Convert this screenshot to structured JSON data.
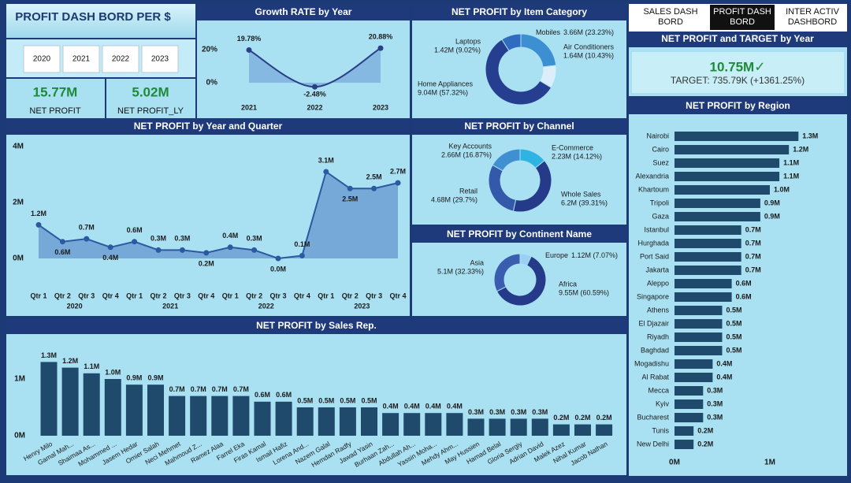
{
  "header": {
    "title": "PROFIT DASH BORD PER $"
  },
  "year_slicer": [
    "2020",
    "2021",
    "2022",
    "2023"
  ],
  "nav": [
    "SALES DASH BORD",
    "PROFIT DASH BORD",
    "INTER ACTIV DASHBORD"
  ],
  "kpis": [
    {
      "value": "15.77M",
      "label": "NET PROFIT"
    },
    {
      "value": "5.02M",
      "label": "NET PROFIT_LY"
    }
  ],
  "target_card": {
    "title": "NET PROFIT and TARGET by Year",
    "value": "10.75M✓",
    "target": "TARGET: 735.79K (+1361.25%)"
  },
  "chart_data": [
    {
      "type": "line",
      "title": "Growth RATE by Year",
      "smooth": true,
      "grid": false,
      "categories": [
        "2021",
        "2022",
        "2023"
      ],
      "values": [
        19.78,
        -2.48,
        20.88
      ],
      "value_labels": [
        "19.78%",
        "-2.48%",
        "20.88%"
      ],
      "ylim": [
        -5,
        25
      ],
      "yticks": [
        {
          "value": 0,
          "label": "0%"
        },
        {
          "value": 20,
          "label": "20%"
        }
      ],
      "color": "#2b3f86",
      "area_color": "#7fb2de"
    },
    {
      "type": "line",
      "title": "NET PROFIT by Year and Quarter",
      "smooth": false,
      "grid": false,
      "categories": [
        "Qtr 1",
        "Qtr 2",
        "Qtr 3",
        "Qtr 4",
        "Qtr 1",
        "Qtr 2",
        "Qtr 3",
        "Qtr 4",
        "Qtr 1",
        "Qtr 2",
        "Qtr 3",
        "Qtr 4",
        "Qtr 1",
        "Qtr 2",
        "Qtr 3",
        "Qtr 4"
      ],
      "groups": [
        "2020",
        "2021",
        "2022",
        "2023"
      ],
      "values": [
        1200000,
        600000,
        700000,
        400000,
        600000,
        300000,
        300000,
        200000,
        400000,
        300000,
        0,
        100000,
        3100000,
        2500000,
        2500000,
        2700000
      ],
      "value_labels": [
        "1.2M",
        "0.6M",
        "0.7M",
        "0.4M",
        "0.6M",
        "0.3M",
        "0.3M",
        "0.2M",
        "0.4M",
        "0.3M",
        "0.0M",
        "0.1M",
        "3.1M",
        "2.5M",
        "2.5M",
        "2.7M"
      ],
      "ylim": [
        -300000,
        4200000
      ],
      "yticks": [
        {
          "value": 0,
          "label": "0M"
        },
        {
          "value": 2000000,
          "label": "2M"
        },
        {
          "value": 4000000,
          "label": "4M"
        }
      ],
      "color": "#2c5aa0",
      "area_color": "#6f9fd2"
    },
    {
      "type": "pie",
      "title": "NET PROFIT by Item Category",
      "categories": [
        "Mobiles",
        "Air Conditioners",
        "Home Appliances",
        "Laptops"
      ],
      "values": [
        3660000,
        1640000,
        9040000,
        1420000
      ],
      "value_labels": [
        "3.66M (23.23%)",
        "1.64M (10.43%)",
        "9.04M (57.32%)",
        "1.42M (9.02%)"
      ],
      "colors": [
        "#3c8fd0",
        "#dbeefa",
        "#263e90",
        "#2f6cbf"
      ]
    },
    {
      "type": "pie",
      "title": "NET PROFIT by Channel",
      "categories": [
        "E-Commerce",
        "Whole Sales",
        "Retail",
        "Key Accounts"
      ],
      "values": [
        2230000,
        6200000,
        4680000,
        2660000
      ],
      "value_labels": [
        "2.23M (14.12%)",
        "6.2M (39.31%)",
        "4.68M (29.7%)",
        "2.66M (16.87%)"
      ],
      "colors": [
        "#2fb3e3",
        "#263a8a",
        "#3458aa",
        "#3f8fd1"
      ]
    },
    {
      "type": "pie",
      "title": "NET PROFIT by Continent Name",
      "categories": [
        "Europe",
        "Africa",
        "Asia"
      ],
      "values": [
        1120000,
        9550000,
        5100000
      ],
      "value_labels": [
        "1.12M (7.07%)",
        "9.55M (60.59%)",
        "5.1M (32.33%)"
      ],
      "colors": [
        "#9bd0f2",
        "#263a8a",
        "#3a5db0"
      ]
    },
    {
      "type": "hbar",
      "title": "NET PROFIT by Region",
      "categories": [
        "Nairobi",
        "Cairo",
        "Suez",
        "Alexandria",
        "Khartoum",
        "Tripoli",
        "Gaza",
        "Istanbul",
        "Hurghada",
        "Port Said",
        "Jakarta",
        "Aleppo",
        "Singapore",
        "Athens",
        "El Djazair",
        "Riyadh",
        "Baghdad",
        "Mogadishu",
        "Al Rabat",
        "Mecca",
        "Kyiv",
        "Bucharest",
        "Tunis",
        "New Delhi"
      ],
      "values": [
        1300000,
        1200000,
        1100000,
        1100000,
        1000000,
        900000,
        900000,
        700000,
        700000,
        700000,
        700000,
        600000,
        600000,
        500000,
        500000,
        500000,
        500000,
        400000,
        400000,
        300000,
        300000,
        300000,
        200000,
        200000
      ],
      "value_labels": [
        "1.3M",
        "1.2M",
        "1.1M",
        "1.1M",
        "1.0M",
        "0.9M",
        "0.9M",
        "0.7M",
        "0.7M",
        "0.7M",
        "0.7M",
        "0.6M",
        "0.6M",
        "0.5M",
        "0.5M",
        "0.5M",
        "0.5M",
        "0.4M",
        "0.4M",
        "0.3M",
        "0.3M",
        "0.3M",
        "0.2M",
        "0.2M"
      ],
      "xlim": [
        0,
        1500000
      ],
      "xticks": [
        {
          "value": 0,
          "label": "0M"
        },
        {
          "value": 1000000,
          "label": "1M"
        }
      ],
      "color": "#1f4a6c"
    },
    {
      "type": "bar",
      "title": "NET PROFIT by Sales Rep.",
      "categories": [
        "Henry Milo",
        "Gamal Mah...",
        "Shaimaa As...",
        "Mohammed ...",
        "Jasem Hedar",
        "Omier Salah",
        "Neci Mehmet",
        "Mahmoud Z...",
        "Ramez Alaa",
        "Farrel Eka",
        "Firas Kamal",
        "Ismail Hafiz",
        "Lorena And...",
        "Nazem Galal",
        "Hemdan Radfy",
        "Jawad Yasin",
        "Burhaan Zah...",
        "Abdullah Ah...",
        "Yassin Moha...",
        "Mehdy Ahm...",
        "May Hussien",
        "Hamad Belal",
        "Gloria Sergiy",
        "Adrian David",
        "Malek Azez",
        "Nihal Kumar",
        "Jacob Nathan"
      ],
      "values": [
        1300000,
        1200000,
        1100000,
        1000000,
        900000,
        900000,
        700000,
        700000,
        700000,
        700000,
        600000,
        600000,
        500000,
        500000,
        500000,
        500000,
        400000,
        400000,
        400000,
        400000,
        300000,
        300000,
        300000,
        300000,
        200000,
        200000,
        200000
      ],
      "value_labels": [
        "1.3M",
        "1.2M",
        "1.1M",
        "1.0M",
        "0.9M",
        "0.9M",
        "0.7M",
        "0.7M",
        "0.7M",
        "0.7M",
        "0.6M",
        "0.6M",
        "0.5M",
        "0.5M",
        "0.5M",
        "0.5M",
        "0.4M",
        "0.4M",
        "0.4M",
        "0.4M",
        "0.3M",
        "0.3M",
        "0.3M",
        "0.3M",
        "0.2M",
        "0.2M",
        "0.2M"
      ],
      "ylim": [
        0,
        1500000
      ],
      "yticks": [
        {
          "value": 0,
          "label": "0M"
        },
        {
          "value": 1000000,
          "label": "1M"
        }
      ],
      "color": "#1f4a6c"
    }
  ]
}
